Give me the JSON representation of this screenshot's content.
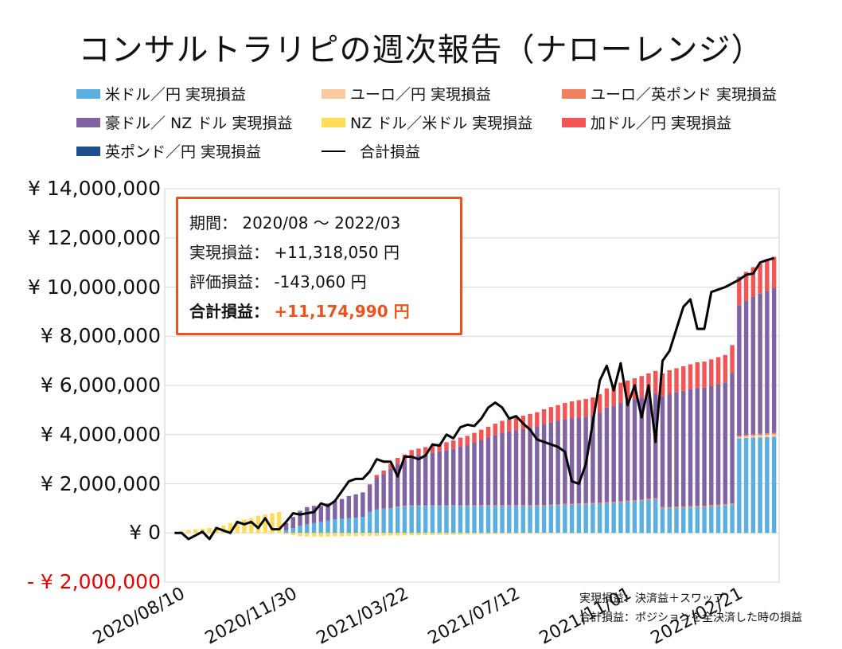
{
  "title": "コンサルトラリピの週次報告（ナローレンジ）",
  "legend": [
    {
      "label": "米ドル／円 実現損益",
      "color": "#5aaee0"
    },
    {
      "label": "ユーロ／円 実現損益",
      "color": "#ffc9a0"
    },
    {
      "label": "ユーロ／英ポンド 実現損益",
      "color": "#f08060"
    },
    {
      "label": "豪ドル／ NZ ドル 実現損益",
      "color": "#8064a2"
    },
    {
      "label": "NZ ドル／米ドル 実現損益",
      "color": "#ffdc5a"
    },
    {
      "label": "加ドル／円 実現損益",
      "color": "#f25555"
    },
    {
      "label": "英ポンド／円 実現損益",
      "color": "#1f4e8c"
    },
    {
      "label": "合計損益",
      "color": "#000000"
    }
  ],
  "infobox": {
    "period_label": "期間：",
    "period_value": "2020/08 ～ 2022/03",
    "realized_label": "実現損益：",
    "realized_value": "+11,318,050 円",
    "unrealized_label": "評価損益：",
    "unrealized_value": "-143,060 円",
    "total_label": "合計損益：",
    "total_value": "+11,174,990 円"
  },
  "notes": [
    "実現損益：決済益＋スワップ",
    "合計損益：ポジションを全決済した時の損益"
  ],
  "chart_data": {
    "type": "bar",
    "stacked": true,
    "ylim": [
      -2000000,
      14000000
    ],
    "yticks": [
      {
        "value": 14000000,
        "label": "¥ 14,000,000"
      },
      {
        "value": 12000000,
        "label": "¥ 12,000,000"
      },
      {
        "value": 10000000,
        "label": "¥ 10,000,000"
      },
      {
        "value": 8000000,
        "label": "¥ 8,000,000"
      },
      {
        "value": 6000000,
        "label": "¥ 6,000,000"
      },
      {
        "value": 4000000,
        "label": "¥ 4,000,000"
      },
      {
        "value": 2000000,
        "label": "¥ 2,000,000"
      },
      {
        "value": 0,
        "label": "¥ 0"
      },
      {
        "value": -2000000,
        "label": "- ¥ 2,000,000"
      }
    ],
    "xticks": [
      {
        "index": 0,
        "label": "2020/08/10"
      },
      {
        "index": 16,
        "label": "2020/11/30"
      },
      {
        "index": 32,
        "label": "2021/03/22"
      },
      {
        "index": 48,
        "label": "2021/07/12"
      },
      {
        "index": 64,
        "label": "2021/11/01"
      },
      {
        "index": 80,
        "label": "2022/02/21"
      }
    ],
    "series": [
      {
        "name": "米ドル／円 実現損益",
        "color": "#5aaee0",
        "values": [
          0,
          0,
          0,
          0,
          0,
          0,
          0,
          0,
          0,
          0,
          0,
          0,
          0,
          0,
          0,
          0,
          100000,
          200000,
          300000,
          350000,
          400000,
          450000,
          500000,
          550000,
          580000,
          600000,
          620000,
          650000,
          850000,
          950000,
          980000,
          1000000,
          1050000,
          1080000,
          1100000,
          1100000,
          1100000,
          1100000,
          1100000,
          1100000,
          1100000,
          1100000,
          1100000,
          1100000,
          1100000,
          1100000,
          1100000,
          1100000,
          1100000,
          1100000,
          1100000,
          1100000,
          1100000,
          1100000,
          1120000,
          1130000,
          1140000,
          1150000,
          1160000,
          1170000,
          1180000,
          1190000,
          1210000,
          1230000,
          1250000,
          1270000,
          1290000,
          1310000,
          1340000,
          1370000,
          1000000,
          1010000,
          1020000,
          1030000,
          1040000,
          1050000,
          1060000,
          1080000,
          1100000,
          1120000,
          1150000,
          3850000,
          3870000,
          3880000,
          3890000,
          3900000,
          3910000
        ]
      },
      {
        "name": "ユーロ／円 実現損益",
        "color": "#ffc9a0",
        "values": [
          0,
          0,
          0,
          0,
          0,
          0,
          0,
          0,
          0,
          0,
          0,
          0,
          0,
          0,
          0,
          0,
          0,
          0,
          0,
          0,
          0,
          0,
          0,
          0,
          0,
          0,
          0,
          0,
          0,
          0,
          0,
          0,
          0,
          0,
          0,
          0,
          0,
          0,
          0,
          0,
          0,
          0,
          0,
          0,
          0,
          0,
          0,
          0,
          0,
          0,
          0,
          0,
          0,
          0,
          0,
          0,
          0,
          0,
          0,
          0,
          0,
          0,
          0,
          0,
          0,
          0,
          0,
          0,
          0,
          0,
          0,
          0,
          0,
          0,
          0,
          0,
          0,
          0,
          0,
          0,
          0,
          50000,
          60000,
          70000,
          80000,
          90000,
          100000
        ]
      },
      {
        "name": "ユーロ／英ポンド 実現損益",
        "color": "#f08060",
        "values": [
          0,
          0,
          0,
          0,
          0,
          0,
          0,
          0,
          0,
          0,
          0,
          0,
          0,
          0,
          0,
          0,
          0,
          0,
          0,
          0,
          0,
          0,
          0,
          0,
          0,
          0,
          0,
          0,
          10000,
          10000,
          10000,
          10000,
          20000,
          20000,
          20000,
          20000,
          20000,
          20000,
          20000,
          20000,
          20000,
          20000,
          20000,
          20000,
          30000,
          30000,
          30000,
          30000,
          30000,
          30000,
          30000,
          30000,
          30000,
          30000,
          30000,
          30000,
          40000,
          40000,
          40000,
          40000,
          40000,
          40000,
          40000,
          40000,
          40000,
          40000,
          40000,
          40000,
          50000,
          50000,
          50000,
          50000,
          50000,
          50000,
          50000,
          50000,
          50000,
          50000,
          50000,
          50000,
          50000,
          60000,
          60000,
          60000,
          60000,
          60000,
          60000
        ]
      },
      {
        "name": "豪ドル／ NZ ドル 実現損益",
        "color": "#8064a2",
        "values": [
          0,
          0,
          0,
          0,
          0,
          0,
          0,
          0,
          0,
          0,
          0,
          0,
          0,
          0,
          0,
          0,
          300000,
          450000,
          600000,
          700000,
          700000,
          650000,
          700000,
          750000,
          800000,
          900000,
          950000,
          1000000,
          1100000,
          1300000,
          1400000,
          1600000,
          1750000,
          1850000,
          2000000,
          2050000,
          2100000,
          2150000,
          2200000,
          2250000,
          2300000,
          2400000,
          2450000,
          2550000,
          2650000,
          2750000,
          2850000,
          2950000,
          3000000,
          3050000,
          3100000,
          3150000,
          3200000,
          3300000,
          3350000,
          3400000,
          3450000,
          3480000,
          3500000,
          3520000,
          3550000,
          3650000,
          3850000,
          3900000,
          4000000,
          4050000,
          4100000,
          4150000,
          4200000,
          4250000,
          4500000,
          4600000,
          4650000,
          4700000,
          4750000,
          4800000,
          4800000,
          4850000,
          4900000,
          4950000,
          5300000,
          5300000,
          5450000,
          5600000,
          5700000,
          5800000,
          5900000
        ]
      },
      {
        "name": "NZ ドル／米ドル 実現損益",
        "color": "#ffdc5a",
        "values": [
          0,
          80000,
          120000,
          150000,
          180000,
          200000,
          250000,
          300000,
          400000,
          500000,
          550000,
          600000,
          700000,
          750000,
          800000,
          850000,
          -50000,
          -100000,
          -130000,
          -150000,
          -150000,
          -150000,
          -150000,
          -140000,
          -140000,
          -130000,
          -130000,
          -120000,
          -120000,
          -120000,
          -110000,
          -110000,
          -110000,
          -100000,
          -100000,
          -100000,
          -90000,
          -90000,
          -80000,
          -80000,
          -70000,
          -70000,
          -60000,
          -60000,
          -50000,
          -50000,
          -50000,
          -40000,
          -40000,
          -40000,
          -30000,
          -30000,
          -30000,
          -20000,
          -20000,
          -20000,
          -10000,
          -10000,
          -10000,
          0,
          0,
          0,
          0,
          0,
          0,
          0,
          0,
          0,
          0,
          0,
          0,
          0,
          0,
          0,
          0,
          0,
          0,
          0,
          0,
          0,
          0,
          0,
          0,
          0,
          0,
          0,
          0
        ]
      },
      {
        "name": "加ドル／円 実現損益",
        "color": "#f25555",
        "values": [
          0,
          0,
          0,
          0,
          0,
          0,
          0,
          0,
          0,
          0,
          0,
          0,
          0,
          0,
          0,
          0,
          0,
          0,
          0,
          0,
          0,
          0,
          0,
          0,
          0,
          0,
          0,
          0,
          20000,
          100000,
          150000,
          200000,
          230000,
          240000,
          250000,
          260000,
          270000,
          280000,
          300000,
          320000,
          340000,
          360000,
          380000,
          400000,
          420000,
          440000,
          460000,
          480000,
          500000,
          520000,
          540000,
          560000,
          580000,
          600000,
          620000,
          640000,
          660000,
          680000,
          700000,
          720000,
          740000,
          760000,
          780000,
          800000,
          820000,
          840000,
          860000,
          880000,
          900000,
          920000,
          940000,
          960000,
          980000,
          1000000,
          1020000,
          1040000,
          1060000,
          1080000,
          1100000,
          1120000,
          1140000,
          1160000,
          1180000,
          1200000,
          1220000,
          1240000,
          1260000
        ]
      },
      {
        "name": "英ポンド／円 実現損益",
        "color": "#1f4e8c",
        "values": [
          0,
          0,
          0,
          0,
          0,
          0,
          0,
          0,
          0,
          0,
          0,
          0,
          0,
          0,
          0,
          0,
          0,
          0,
          0,
          0,
          0,
          0,
          0,
          0,
          0,
          0,
          0,
          0,
          0,
          0,
          0,
          0,
          0,
          0,
          0,
          0,
          0,
          0,
          0,
          0,
          0,
          0,
          0,
          0,
          0,
          0,
          0,
          0,
          0,
          0,
          0,
          0,
          0,
          0,
          0,
          0,
          0,
          0,
          0,
          0,
          0,
          0,
          0,
          0,
          0,
          0,
          0,
          0,
          0,
          0,
          0,
          0,
          0,
          0,
          0,
          0,
          0,
          0,
          0,
          0,
          0,
          0,
          0,
          0,
          0,
          0,
          0
        ]
      }
    ],
    "line": {
      "name": "合計損益",
      "color": "#000000",
      "values": [
        0,
        0,
        -250000,
        -100000,
        50000,
        -250000,
        200000,
        100000,
        0,
        450000,
        350000,
        450000,
        200000,
        600000,
        150000,
        150000,
        450000,
        800000,
        750000,
        800000,
        850000,
        1200000,
        1100000,
        1300000,
        1700000,
        2100000,
        2200000,
        2200000,
        2500000,
        3000000,
        2900000,
        2900000,
        2300000,
        3100000,
        3100000,
        3000000,
        3150000,
        3600000,
        3550000,
        4000000,
        3850000,
        4300000,
        4400000,
        4350000,
        4650000,
        5100000,
        5300000,
        5100000,
        4650000,
        4750000,
        4450000,
        4200000,
        3800000,
        3700000,
        3600000,
        3500000,
        3300000,
        2100000,
        2000000,
        2800000,
        4500000,
        6200000,
        6800000,
        5800000,
        6900000,
        5200000,
        6000000,
        4700000,
        6000000,
        3700000,
        7000000,
        7400000,
        8300000,
        9200000,
        9500000,
        8300000,
        8300000,
        9800000,
        9900000,
        10000000,
        10150000,
        10300000,
        10500000,
        10550000,
        11000000,
        11100000,
        11174990
      ]
    }
  }
}
